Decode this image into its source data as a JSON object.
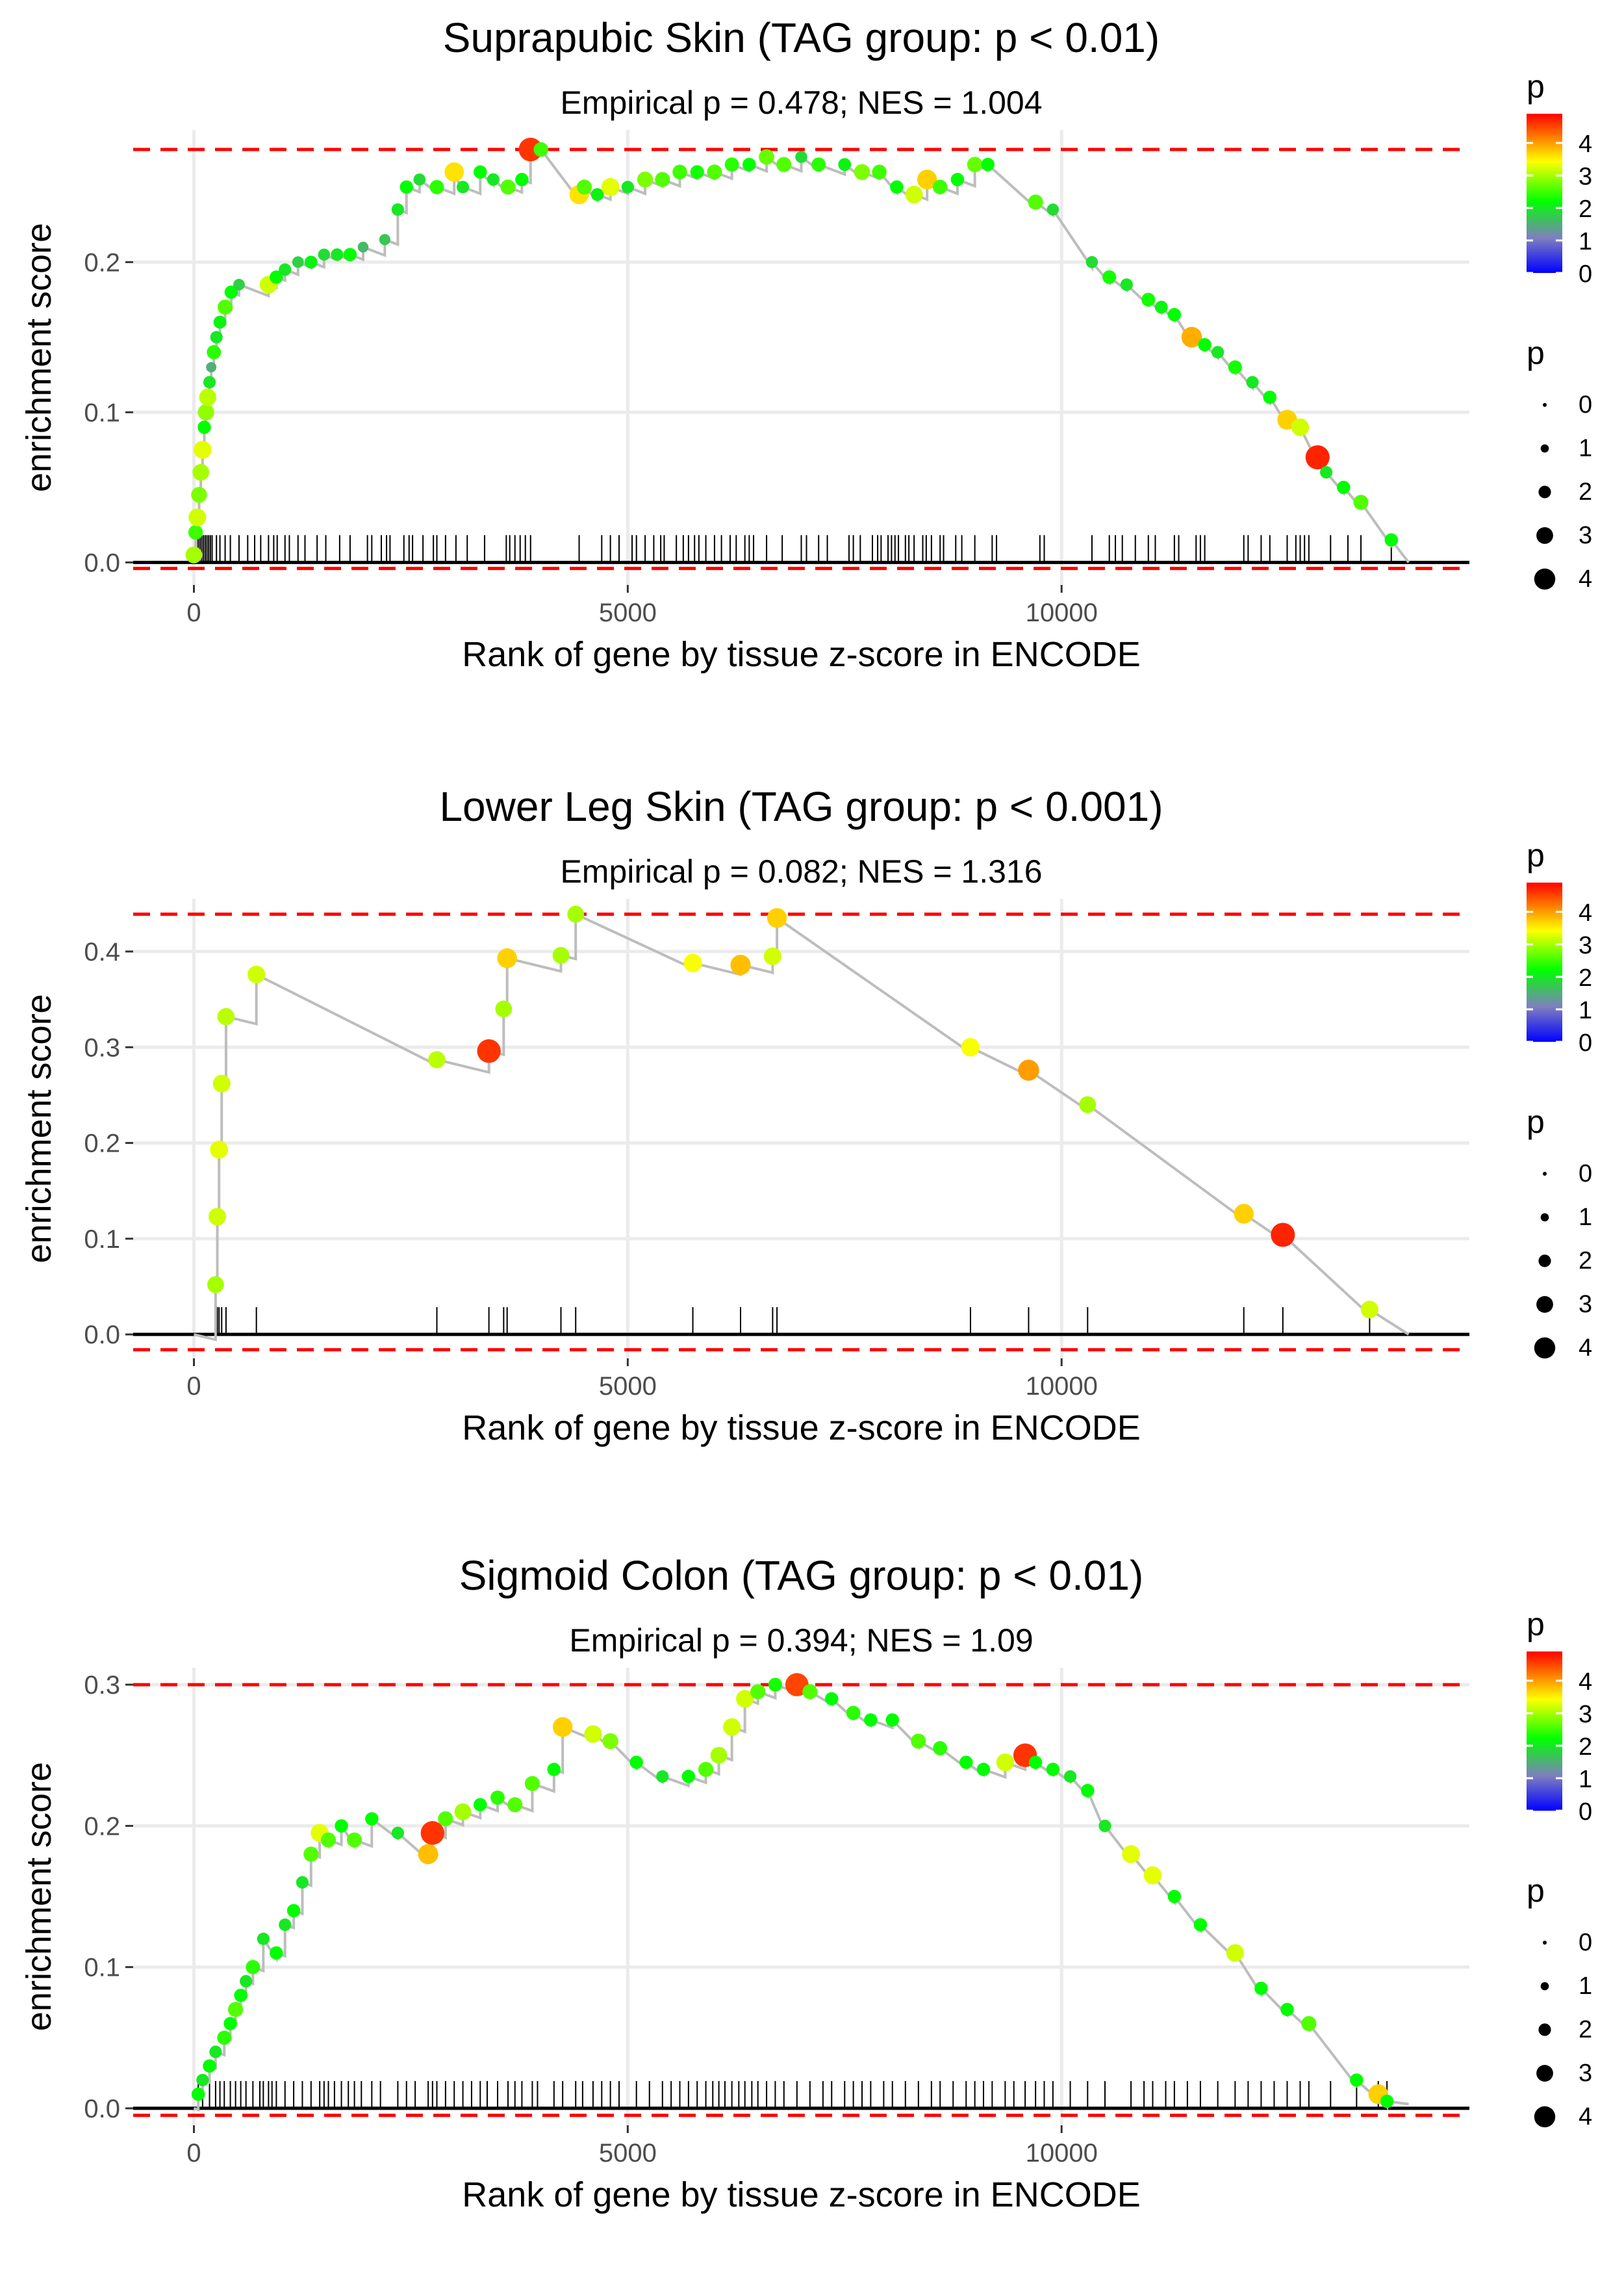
{
  "chart_data": [
    {
      "type": "scatter",
      "title": "Suprapubic Skin (TAG group: p < 0.01)",
      "subtitle": "Empirical p = 0.478; NES = 1.004",
      "xlabel": "Rank of gene by tissue z-score in ENCODE",
      "ylabel": "enrichment score",
      "xlim": [
        -700,
        14700
      ],
      "ylim": [
        -0.015,
        0.288
      ],
      "xticks": [
        0,
        5000,
        10000
      ],
      "yticks": [
        0.0,
        0.1,
        0.2
      ],
      "ytick_labels": [
        "0.0",
        "0.1",
        "0.2"
      ],
      "grid": true,
      "max_es": 0.275,
      "min_es": -0.004,
      "line_end": [
        14000,
        0.0
      ],
      "points": [
        [
          0,
          0.005,
          3.0
        ],
        [
          20,
          0.02,
          2.5
        ],
        [
          40,
          0.03,
          3.2
        ],
        [
          60,
          0.045,
          2.8
        ],
        [
          80,
          0.06,
          3.0
        ],
        [
          100,
          0.075,
          3.3
        ],
        [
          120,
          0.09,
          2.2
        ],
        [
          140,
          0.1,
          2.9
        ],
        [
          160,
          0.11,
          3.1
        ],
        [
          180,
          0.12,
          2.0
        ],
        [
          200,
          0.13,
          1.5
        ],
        [
          230,
          0.14,
          2.4
        ],
        [
          260,
          0.15,
          2.0
        ],
        [
          300,
          0.16,
          2.1
        ],
        [
          360,
          0.17,
          2.6
        ],
        [
          430,
          0.18,
          2.2
        ],
        [
          520,
          0.185,
          1.8
        ],
        [
          860,
          0.185,
          3.2
        ],
        [
          950,
          0.19,
          2.2
        ],
        [
          1050,
          0.195,
          2.0
        ],
        [
          1200,
          0.2,
          1.8
        ],
        [
          1350,
          0.2,
          2.1
        ],
        [
          1500,
          0.205,
          1.9
        ],
        [
          1650,
          0.205,
          2.0
        ],
        [
          1800,
          0.205,
          2.2
        ],
        [
          1950,
          0.21,
          1.6
        ],
        [
          2200,
          0.215,
          1.7
        ],
        [
          2350,
          0.235,
          2.0
        ],
        [
          2450,
          0.25,
          2.2
        ],
        [
          2600,
          0.255,
          1.9
        ],
        [
          2800,
          0.25,
          2.4
        ],
        [
          3000,
          0.26,
          3.6
        ],
        [
          3100,
          0.25,
          2.0
        ],
        [
          3300,
          0.26,
          2.2
        ],
        [
          3450,
          0.255,
          2.0
        ],
        [
          3620,
          0.25,
          2.6
        ],
        [
          3780,
          0.255,
          2.2
        ],
        [
          3880,
          0.275,
          4.6
        ],
        [
          4000,
          0.275,
          2.5
        ],
        [
          4440,
          0.245,
          3.6
        ],
        [
          4500,
          0.25,
          2.6
        ],
        [
          4650,
          0.245,
          2.1
        ],
        [
          4800,
          0.25,
          3.3
        ],
        [
          5000,
          0.25,
          2.0
        ],
        [
          5200,
          0.255,
          2.8
        ],
        [
          5400,
          0.255,
          2.6
        ],
        [
          5600,
          0.26,
          2.5
        ],
        [
          5800,
          0.26,
          2.3
        ],
        [
          6000,
          0.26,
          2.6
        ],
        [
          6200,
          0.265,
          2.4
        ],
        [
          6400,
          0.265,
          2.2
        ],
        [
          6600,
          0.27,
          2.7
        ],
        [
          6800,
          0.265,
          2.6
        ],
        [
          7000,
          0.27,
          1.9
        ],
        [
          7200,
          0.265,
          2.4
        ],
        [
          7500,
          0.265,
          2.1
        ],
        [
          7700,
          0.26,
          2.8
        ],
        [
          7900,
          0.26,
          2.5
        ],
        [
          8100,
          0.25,
          2.2
        ],
        [
          8300,
          0.245,
          3.2
        ],
        [
          8450,
          0.255,
          3.7
        ],
        [
          8600,
          0.25,
          2.5
        ],
        [
          8800,
          0.255,
          2.2
        ],
        [
          9000,
          0.265,
          2.7
        ],
        [
          9150,
          0.265,
          2.2
        ],
        [
          9700,
          0.24,
          2.6
        ],
        [
          9900,
          0.235,
          1.9
        ],
        [
          10350,
          0.2,
          1.9
        ],
        [
          10550,
          0.19,
          2.3
        ],
        [
          10750,
          0.185,
          2.0
        ],
        [
          11000,
          0.175,
          2.3
        ],
        [
          11150,
          0.17,
          2.1
        ],
        [
          11300,
          0.165,
          2.2
        ],
        [
          11500,
          0.15,
          3.9
        ],
        [
          11650,
          0.145,
          2.2
        ],
        [
          11800,
          0.14,
          2.0
        ],
        [
          12000,
          0.13,
          2.3
        ],
        [
          12200,
          0.12,
          2.0
        ],
        [
          12400,
          0.11,
          2.2
        ],
        [
          12600,
          0.095,
          3.7
        ],
        [
          12750,
          0.09,
          3.2
        ],
        [
          12950,
          0.07,
          4.7
        ],
        [
          13050,
          0.06,
          2.0
        ],
        [
          13250,
          0.05,
          2.2
        ],
        [
          13450,
          0.04,
          2.6
        ],
        [
          13800,
          0.015,
          2.2
        ]
      ],
      "rug": [
        30,
        50,
        70,
        90,
        110,
        130,
        150,
        170,
        190,
        210,
        260,
        300,
        360,
        420,
        520,
        620,
        700,
        770,
        860,
        920,
        960,
        1050,
        1100,
        1200,
        1280,
        1420,
        1520,
        1680,
        1800,
        2000,
        2050,
        2160,
        2220,
        2260,
        2420,
        2480,
        2520,
        2640,
        2760,
        2800,
        2900,
        3020,
        3150,
        3350,
        3600,
        3640,
        3700,
        3760,
        3820,
        3880,
        4440,
        4700,
        4800,
        4900,
        5050,
        5100,
        5200,
        5300,
        5380,
        5420,
        5560,
        5640,
        5700,
        5770,
        5820,
        5900,
        6000,
        6080,
        6180,
        6250,
        6350,
        6400,
        6450,
        6600,
        6780,
        7000,
        7060,
        7200,
        7300,
        7550,
        7600,
        7680,
        7820,
        7880,
        7920,
        8000,
        8040,
        8080,
        8120,
        8200,
        8240,
        8300,
        8400,
        8440,
        8500,
        8600,
        8640,
        8780,
        8850,
        9000,
        9200,
        9250,
        9750,
        9800,
        10350,
        10550,
        10620,
        10700,
        10850,
        11000,
        11080,
        11300,
        11350,
        11550,
        11600,
        11650,
        12100,
        12150,
        12300,
        12400,
        12600,
        12700,
        12750,
        12800,
        12850,
        13100,
        13300,
        13450,
        13800
      ]
    },
    {
      "type": "scatter",
      "title": "Lower Leg Skin (TAG group: p < 0.001)",
      "subtitle": "Empirical p = 0.082; NES = 1.316",
      "xlabel": "Rank of gene by tissue z-score in ENCODE",
      "ylabel": "enrichment score",
      "xlim": [
        -700,
        14700
      ],
      "ylim": [
        -0.025,
        0.455
      ],
      "xticks": [
        0,
        5000,
        10000
      ],
      "yticks": [
        0.0,
        0.1,
        0.2,
        0.3,
        0.4
      ],
      "ytick_labels": [
        "0.0",
        "0.1",
        "0.2",
        "0.3",
        "0.4"
      ],
      "grid": true,
      "max_es": 0.439,
      "min_es": -0.016,
      "line_end": [
        14000,
        0.0
      ],
      "points": [
        [
          250,
          0.052,
          3.0
        ],
        [
          270,
          0.123,
          3.2
        ],
        [
          290,
          0.193,
          3.3
        ],
        [
          320,
          0.262,
          3.2
        ],
        [
          370,
          0.332,
          3.1
        ],
        [
          720,
          0.376,
          3.2
        ],
        [
          2800,
          0.287,
          3.1
        ],
        [
          3400,
          0.296,
          4.6
        ],
        [
          3570,
          0.34,
          3.0
        ],
        [
          3610,
          0.393,
          3.7
        ],
        [
          4230,
          0.396,
          3.0
        ],
        [
          4400,
          0.439,
          3.0
        ],
        [
          5750,
          0.388,
          3.4
        ],
        [
          6300,
          0.386,
          3.8
        ],
        [
          6670,
          0.395,
          3.2
        ],
        [
          6720,
          0.435,
          3.7
        ],
        [
          8950,
          0.3,
          3.4
        ],
        [
          9620,
          0.276,
          4.0
        ],
        [
          10300,
          0.24,
          3.0
        ],
        [
          12100,
          0.126,
          3.7
        ],
        [
          12550,
          0.104,
          4.7
        ],
        [
          13550,
          0.026,
          3.2
        ]
      ],
      "rug": [
        250,
        270,
        290,
        320,
        370,
        720,
        2800,
        3400,
        3570,
        3610,
        4230,
        4400,
        5750,
        6300,
        6670,
        6720,
        8950,
        9620,
        10300,
        12100,
        12550,
        13550
      ]
    },
    {
      "type": "scatter",
      "title": "Sigmoid Colon (TAG group: p < 0.01)",
      "subtitle": "Empirical p = 0.394; NES = 1.09",
      "xlabel": "Rank of gene by tissue z-score in ENCODE",
      "ylabel": "enrichment score",
      "xlim": [
        -700,
        14700
      ],
      "ylim": [
        -0.012,
        0.312
      ],
      "xticks": [
        0,
        5000,
        10000
      ],
      "yticks": [
        0.0,
        0.1,
        0.2,
        0.3
      ],
      "ytick_labels": [
        "0.0",
        "0.1",
        "0.2",
        "0.3"
      ],
      "grid": true,
      "max_es": 0.3,
      "min_es": -0.005,
      "line_end": [
        14000,
        0.003
      ],
      "points": [
        [
          50,
          0.01,
          2.2
        ],
        [
          100,
          0.02,
          2.0
        ],
        [
          180,
          0.03,
          2.2
        ],
        [
          250,
          0.04,
          2.0
        ],
        [
          350,
          0.05,
          2.4
        ],
        [
          420,
          0.06,
          2.2
        ],
        [
          480,
          0.07,
          2.6
        ],
        [
          540,
          0.08,
          2.2
        ],
        [
          600,
          0.09,
          2.0
        ],
        [
          680,
          0.1,
          2.4
        ],
        [
          800,
          0.12,
          2.0
        ],
        [
          950,
          0.11,
          2.2
        ],
        [
          1050,
          0.13,
          2.0
        ],
        [
          1150,
          0.14,
          2.2
        ],
        [
          1250,
          0.16,
          2.0
        ],
        [
          1350,
          0.18,
          2.6
        ],
        [
          1450,
          0.195,
          3.3
        ],
        [
          1550,
          0.19,
          2.6
        ],
        [
          1700,
          0.2,
          2.2
        ],
        [
          1850,
          0.19,
          2.6
        ],
        [
          2050,
          0.205,
          2.2
        ],
        [
          2350,
          0.195,
          2.0
        ],
        [
          2700,
          0.18,
          3.8
        ],
        [
          2750,
          0.195,
          4.6
        ],
        [
          2900,
          0.205,
          2.6
        ],
        [
          3100,
          0.21,
          3.0
        ],
        [
          3300,
          0.215,
          2.2
        ],
        [
          3500,
          0.22,
          2.4
        ],
        [
          3700,
          0.215,
          2.6
        ],
        [
          3900,
          0.23,
          2.6
        ],
        [
          4150,
          0.24,
          2.2
        ],
        [
          4250,
          0.27,
          3.7
        ],
        [
          4600,
          0.265,
          3.2
        ],
        [
          4800,
          0.26,
          2.8
        ],
        [
          5100,
          0.245,
          2.2
        ],
        [
          5400,
          0.235,
          2.0
        ],
        [
          5700,
          0.235,
          2.2
        ],
        [
          5900,
          0.24,
          2.6
        ],
        [
          6050,
          0.25,
          3.0
        ],
        [
          6200,
          0.27,
          3.2
        ],
        [
          6350,
          0.29,
          3.2
        ],
        [
          6500,
          0.295,
          2.6
        ],
        [
          6700,
          0.3,
          2.3
        ],
        [
          6950,
          0.3,
          4.5
        ],
        [
          7100,
          0.295,
          2.6
        ],
        [
          7350,
          0.29,
          2.2
        ],
        [
          7600,
          0.28,
          2.4
        ],
        [
          7800,
          0.275,
          2.2
        ],
        [
          8050,
          0.275,
          2.2
        ],
        [
          8350,
          0.26,
          2.6
        ],
        [
          8600,
          0.255,
          2.4
        ],
        [
          8900,
          0.245,
          2.2
        ],
        [
          9100,
          0.24,
          2.2
        ],
        [
          9350,
          0.245,
          3.2
        ],
        [
          9580,
          0.25,
          4.6
        ],
        [
          9700,
          0.245,
          2.2
        ],
        [
          9900,
          0.24,
          2.2
        ],
        [
          10100,
          0.235,
          2.0
        ],
        [
          10300,
          0.225,
          2.2
        ],
        [
          10500,
          0.2,
          2.0
        ],
        [
          10800,
          0.18,
          3.3
        ],
        [
          11050,
          0.165,
          3.3
        ],
        [
          11300,
          0.15,
          2.2
        ],
        [
          11600,
          0.13,
          2.2
        ],
        [
          12000,
          0.11,
          3.2
        ],
        [
          12300,
          0.085,
          2.2
        ],
        [
          12600,
          0.07,
          2.2
        ],
        [
          12850,
          0.06,
          2.6
        ],
        [
          13400,
          0.02,
          2.2
        ],
        [
          13650,
          0.01,
          3.7
        ],
        [
          13750,
          0.005,
          2.2
        ]
      ],
      "rug": [
        50,
        100,
        180,
        250,
        300,
        350,
        420,
        480,
        540,
        600,
        680,
        760,
        800,
        860,
        900,
        950,
        1050,
        1150,
        1250,
        1350,
        1450,
        1500,
        1550,
        1620,
        1700,
        1780,
        1850,
        1930,
        2050,
        2150,
        2350,
        2450,
        2550,
        2700,
        2750,
        2800,
        2900,
        3000,
        3100,
        3200,
        3300,
        3380,
        3500,
        3620,
        3700,
        3780,
        3900,
        3960,
        4150,
        4250,
        4400,
        4480,
        4600,
        4700,
        4800,
        4900,
        5100,
        5250,
        5400,
        5500,
        5600,
        5700,
        5800,
        5900,
        5980,
        6050,
        6120,
        6200,
        6280,
        6350,
        6430,
        6500,
        6600,
        6700,
        6800,
        6950,
        7100,
        7250,
        7350,
        7500,
        7600,
        7700,
        7800,
        7950,
        8050,
        8200,
        8350,
        8500,
        8600,
        8750,
        8900,
        9000,
        9100,
        9200,
        9350,
        9450,
        9580,
        9700,
        9800,
        9900,
        10100,
        10300,
        10500,
        10800,
        10950,
        11050,
        11200,
        11300,
        11450,
        11600,
        11800,
        12000,
        12150,
        12300,
        12450,
        12600,
        12750,
        12850,
        13100,
        13400,
        13650,
        13750
      ]
    }
  ],
  "legend": {
    "colorbar_title": "p",
    "colorbar_ticks": [
      "0",
      "1",
      "2",
      "3",
      "4"
    ],
    "colorbar_stops": [
      "#0000ff",
      "#7f7fbf",
      "#00ff00",
      "#ffff00",
      "#ff0000"
    ],
    "size_title": "p",
    "size_labels": [
      "0",
      "1",
      "2",
      "3",
      "4"
    ]
  },
  "colors": {
    "reference_line": "#ff0000",
    "path_line": "#bdbdbd",
    "grid": "#ebebeb",
    "axis_line": "#000000",
    "rug": "#000000"
  }
}
